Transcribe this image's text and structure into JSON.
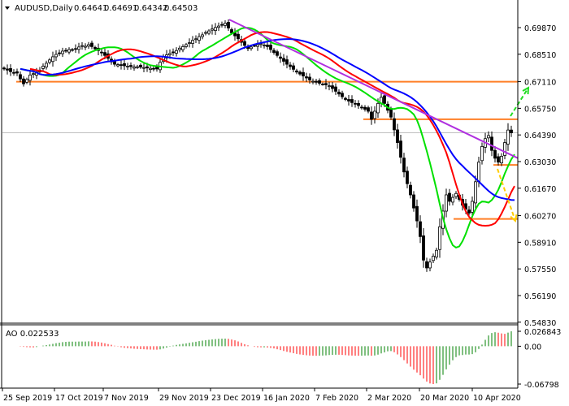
{
  "header": {
    "symbol_timeframe": "AUDUSD,Daily",
    "open": "0.64641",
    "high": "0.64691",
    "low": "0.64342",
    "close": "0.64503"
  },
  "chart_data": [
    {
      "type": "candlestick",
      "title": "AUDUSD,Daily",
      "ylim": [
        0.5485,
        0.7055
      ],
      "price_ticks": [
        "0.69870",
        "0.68510",
        "0.67110",
        "0.65750",
        "0.64390",
        "0.63030",
        "0.61670",
        "0.60270",
        "0.58910",
        "0.57550",
        "0.56190",
        "0.54830"
      ],
      "current_price": "0.64503",
      "date_ticks": [
        "25 Sep 2019",
        "17 Oct 2019",
        "7 Nov 2019",
        "29 Nov 2019",
        "23 Dec 2019",
        "16 Jan 2020",
        "7 Feb 2020",
        "2 Mar 2020",
        "20 Mar 2020",
        "10 Apr 2020"
      ],
      "closes": [
        0.6776,
        0.677,
        0.6762,
        0.6758,
        0.6755,
        0.6725,
        0.67,
        0.6722,
        0.6745,
        0.6752,
        0.6761,
        0.677,
        0.679,
        0.6805,
        0.6822,
        0.6838,
        0.685,
        0.6858,
        0.6867,
        0.687,
        0.6875,
        0.6872,
        0.688,
        0.6888,
        0.6895,
        0.6892,
        0.69,
        0.689,
        0.6878,
        0.687,
        0.686,
        0.6845,
        0.683,
        0.6812,
        0.68,
        0.6798,
        0.6795,
        0.6792,
        0.679,
        0.6788,
        0.6786,
        0.6787,
        0.6785,
        0.6783,
        0.6781,
        0.6779,
        0.6778,
        0.6776,
        0.681,
        0.684,
        0.6848,
        0.6855,
        0.686,
        0.687,
        0.6882,
        0.689,
        0.69,
        0.691,
        0.6922,
        0.693,
        0.6941,
        0.695,
        0.6962,
        0.697,
        0.698,
        0.6988,
        0.6995,
        0.7002,
        0.701,
        0.6985,
        0.696,
        0.6945,
        0.693,
        0.6912,
        0.6896,
        0.688,
        0.6888,
        0.6895,
        0.69,
        0.6905,
        0.6898,
        0.689,
        0.6875,
        0.686,
        0.6845,
        0.683,
        0.6815,
        0.68,
        0.6788,
        0.6774,
        0.676,
        0.675,
        0.674,
        0.673,
        0.672,
        0.6713,
        0.6708,
        0.6703,
        0.6698,
        0.6695,
        0.669,
        0.6676,
        0.6662,
        0.6648,
        0.6634,
        0.662,
        0.6612,
        0.6604,
        0.6596,
        0.6589,
        0.658,
        0.657,
        0.656,
        0.6519,
        0.656,
        0.66,
        0.6631,
        0.66,
        0.6565,
        0.653,
        0.6465,
        0.64,
        0.6325,
        0.625,
        0.619,
        0.6133,
        0.6066,
        0.6,
        0.592,
        0.58,
        0.576,
        0.579,
        0.582,
        0.585,
        0.597,
        0.605,
        0.6133,
        0.61,
        0.612,
        0.614,
        0.611,
        0.608,
        0.606,
        0.604,
        0.61,
        0.62,
        0.63,
        0.638,
        0.642,
        0.6436,
        0.636,
        0.632,
        0.63,
        0.633,
        0.64,
        0.6464,
        0.645
      ],
      "moving_averages": [
        {
          "color": "#00e000"
        },
        {
          "color": "#ff0000"
        },
        {
          "color": "#0000ff"
        }
      ],
      "levels": [
        {
          "price": 0.6711,
          "color": "#ff7f27"
        },
        {
          "price": 0.6519,
          "color": "#ff7f27"
        },
        {
          "price": 0.6286,
          "color": "#ff7f27"
        },
        {
          "price": 0.601,
          "color": "#ff7f27"
        }
      ],
      "trendline": {
        "from_price": 0.7028,
        "to_price": 0.6195,
        "color": "#b030e0"
      },
      "forecast_arrows": [
        {
          "direction": "up",
          "target_price": 0.668,
          "color": "#22dd22"
        },
        {
          "direction": "down",
          "target_price": 0.6,
          "color": "#ffcc00"
        }
      ]
    },
    {
      "type": "bar",
      "title": "AO 0.022533",
      "indicator": "AO",
      "value": "0.022533",
      "ticks": [
        "0.026843",
        "0.00",
        "-0.06798"
      ],
      "ylim": [
        -0.06798,
        0.026843
      ],
      "colors": {
        "up": "#008000",
        "down": "#ff0000"
      }
    }
  ]
}
